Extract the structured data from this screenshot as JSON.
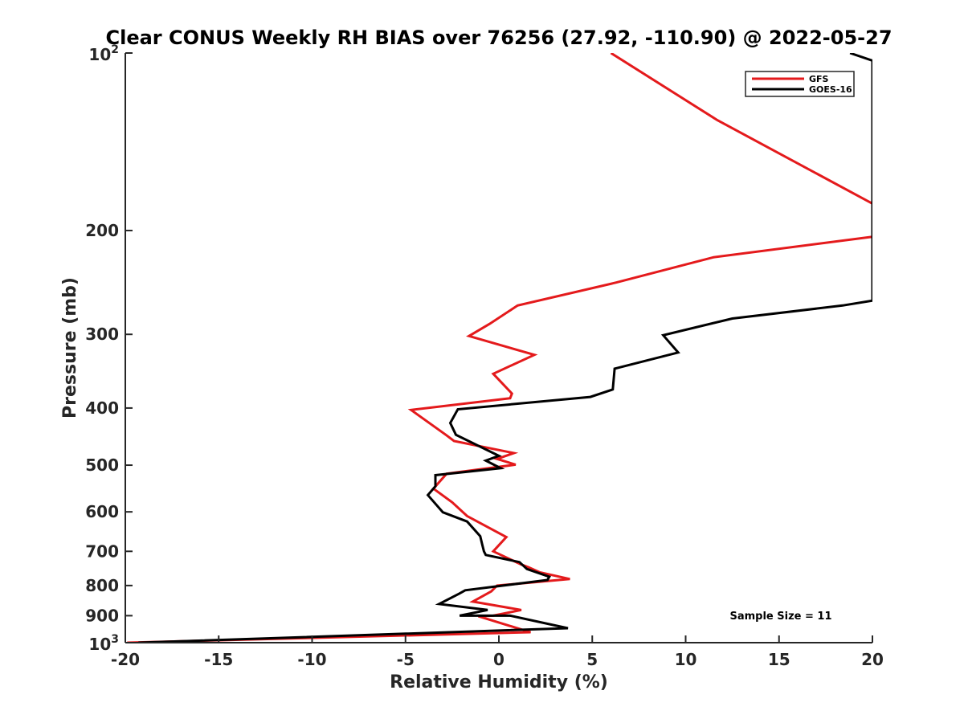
{
  "chart_data": {
    "type": "line",
    "title": "Clear CONUS Weekly RH BIAS over 76256 (27.92, -110.90) @ 2022-05-27",
    "xlabel": "Relative Humidity (%)",
    "ylabel": "Pressure (mb)",
    "xlim": [
      -20,
      20
    ],
    "ylim": [
      100,
      1000
    ],
    "yscale": "log",
    "y_reversed": true,
    "x_ticks": [
      "-20",
      "-15",
      "-10",
      "-5",
      "0",
      "5",
      "10",
      "15",
      "20"
    ],
    "x_tick_values": [
      -20,
      -15,
      -10,
      -5,
      0,
      5,
      10,
      15,
      20
    ],
    "y_tick_values": [
      100,
      200,
      300,
      400,
      500,
      600,
      700,
      800,
      900,
      1000
    ],
    "y_tick_labels": [
      "200",
      "300",
      "400",
      "500",
      "600",
      "700",
      "800",
      "900"
    ],
    "y_tick_label_values": [
      200,
      300,
      400,
      500,
      600,
      700,
      800,
      900
    ],
    "y_special_labels": [
      {
        "value": 100,
        "base": "10",
        "exp": "2"
      },
      {
        "value": 1000,
        "base": "10",
        "exp": "3"
      }
    ],
    "legend_position": "top-right",
    "grid": false,
    "annotation": "Sample Size = 11",
    "series": [
      {
        "name": "GFS",
        "color": "#e41a1c",
        "x": [
          6.0,
          11.7,
          20.0,
          20.0,
          11.5,
          6.3,
          1.0,
          -0.5,
          -1.6,
          1.9,
          -0.3,
          0.7,
          0.6,
          -4.7,
          -2.8,
          -2.4,
          0.8,
          -0.1,
          0.9,
          -2.8,
          -3.5,
          -2.5,
          -1.7,
          0.4,
          -0.3,
          1.2,
          1.6,
          2.2,
          3.8,
          -0.1,
          -0.4,
          -1.4,
          1.2,
          -0.3,
          -1.1,
          1.7,
          -19.9
        ],
        "y": [
          100,
          130,
          180,
          205,
          222,
          245,
          268,
          288,
          302,
          325,
          350,
          378,
          385,
          403,
          445,
          455,
          477,
          488,
          499,
          517,
          548,
          578,
          610,
          662,
          700,
          737,
          745,
          760,
          780,
          800,
          818,
          852,
          880,
          900,
          902,
          960,
          1000
        ]
      },
      {
        "name": "GOES-16",
        "color": "#000000",
        "x": [
          18.8,
          20.0,
          20.0,
          18.4,
          12.5,
          8.8,
          9.6,
          6.2,
          6.1,
          4.9,
          -2.2,
          -2.6,
          -2.3,
          0.0,
          -0.7,
          0.1,
          -3.4,
          -3.4,
          -3.8,
          -3.0,
          -1.7,
          -1.0,
          -0.9,
          -0.8,
          -0.7,
          1.1,
          1.5,
          2.7,
          2.6,
          -1.8,
          -2.1,
          -3.2,
          -0.6,
          -2.1,
          0.6,
          3.7,
          -19.3
        ],
        "y": [
          100,
          103,
          263,
          268,
          282,
          301,
          322,
          343,
          372,
          383,
          402,
          424,
          444,
          482,
          491,
          506,
          520,
          543,
          562,
          601,
          623,
          660,
          680,
          700,
          710,
          730,
          750,
          773,
          783,
          815,
          825,
          860,
          880,
          900,
          900,
          945,
          1000
        ]
      }
    ]
  }
}
